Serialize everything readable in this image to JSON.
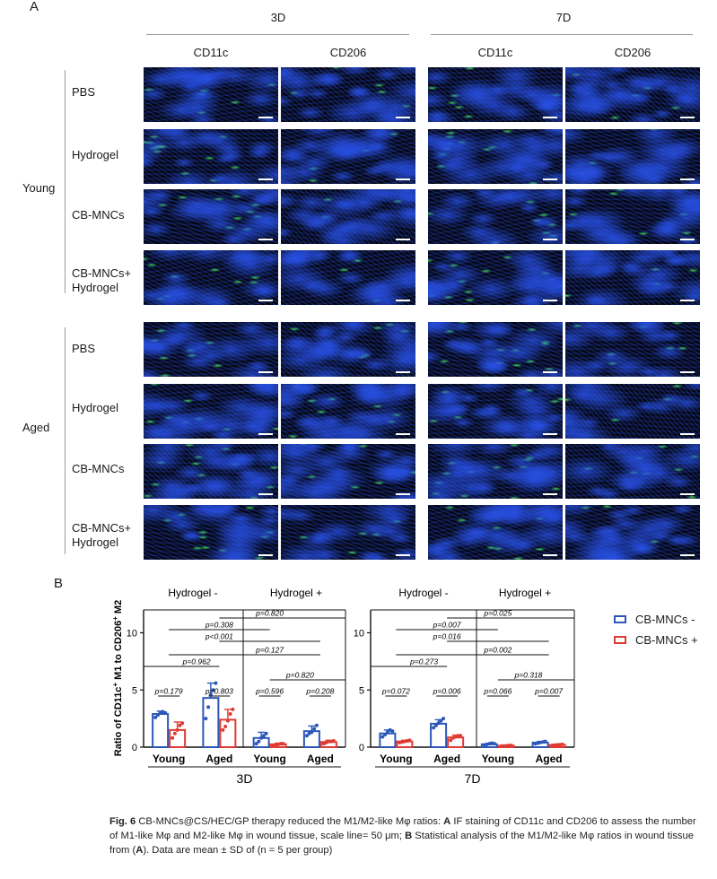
{
  "panel_a": {
    "letter": "A",
    "time_groups": [
      "3D",
      "7D"
    ],
    "markers": [
      "CD11c",
      "CD206",
      "CD11c",
      "CD206"
    ],
    "age_groups": [
      {
        "label": "Young",
        "rows": [
          "PBS",
          "Hydrogel",
          "CB-MNCs",
          "CB-MNCs+ Hydrogel"
        ]
      },
      {
        "label": "Aged",
        "rows": [
          "PBS",
          "Hydrogel",
          "CB-MNCs",
          "CB-MNCs+ Hydrogel"
        ]
      }
    ],
    "row_labels": {
      "pbs": "PBS",
      "hydrogel": "Hydrogel",
      "cbmncs": "CB-MNCs",
      "combo_line1": "CB-MNCs+",
      "combo_line2": "Hydrogel"
    },
    "young_label": "Young",
    "aged_label": "Aged",
    "colors": {
      "nuclei": "#1f4fd6",
      "stain": "#3ddc5a",
      "background": "#05060d"
    }
  },
  "panel_b": {
    "letter": "B",
    "legend": [
      {
        "label": "CB-MNCs -",
        "color": "#2c57b8"
      },
      {
        "label": "CB-MNCs +",
        "color": "#e03a32"
      }
    ]
  },
  "chart_data": [
    {
      "type": "bar",
      "title": "3D",
      "ylabel": "Ratio of CD11c+ M1 to CD206+ M2",
      "ylim": [
        0,
        12
      ],
      "yticks": [
        0,
        5,
        10
      ],
      "hydrogel_groups": [
        "Hydrogel -",
        "Hydrogel +"
      ],
      "categories": [
        "Young",
        "Aged",
        "Young",
        "Aged"
      ],
      "series": [
        {
          "name": "CB-MNCs -",
          "values": [
            2.9,
            4.3,
            0.8,
            1.4
          ],
          "errors": [
            0.25,
            1.3,
            0.5,
            0.45
          ],
          "points": [
            [
              2.6,
              2.8,
              3.0,
              3.1,
              3.0
            ],
            [
              2.5,
              3.5,
              4.6,
              5.0,
              5.6
            ],
            [
              0.3,
              0.5,
              0.8,
              1.0,
              1.2
            ],
            [
              1.0,
              1.2,
              1.3,
              1.6,
              1.9
            ]
          ]
        },
        {
          "name": "CB-MNCs +",
          "values": [
            1.5,
            2.4,
            0.25,
            0.45
          ],
          "errors": [
            0.7,
            0.9,
            0.1,
            0.15
          ],
          "points": [
            [
              0.8,
              1.2,
              1.5,
              1.9,
              2.1
            ],
            [
              1.5,
              1.8,
              2.3,
              2.9,
              3.3
            ],
            [
              0.15,
              0.2,
              0.25,
              0.3,
              0.3
            ],
            [
              0.3,
              0.4,
              0.5,
              0.5,
              0.55
            ]
          ]
        }
      ],
      "annotations": [
        "p=0.820",
        "p=0.308",
        "p<0.001",
        "p=0.127",
        "p=0.962",
        "p=0.820",
        "p=0.179",
        "p=0.803",
        "p=0.596",
        "p=0.208"
      ]
    },
    {
      "type": "bar",
      "title": "7D",
      "ylabel": "",
      "ylim": [
        0,
        12
      ],
      "yticks": [
        0,
        5,
        10
      ],
      "hydrogel_groups": [
        "Hydrogel -",
        "Hydrogel +"
      ],
      "categories": [
        "Young",
        "Aged",
        "Young",
        "Aged"
      ],
      "series": [
        {
          "name": "CB-MNCs -",
          "values": [
            1.2,
            2.05,
            0.25,
            0.4
          ],
          "errors": [
            0.3,
            0.35,
            0.08,
            0.1
          ],
          "points": [
            [
              0.9,
              1.1,
              1.3,
              1.5,
              1.4
            ],
            [
              1.7,
              1.9,
              2.1,
              2.3,
              2.5
            ],
            [
              0.2,
              0.25,
              0.3,
              0.35,
              0.3
            ],
            [
              0.3,
              0.35,
              0.4,
              0.45,
              0.5
            ]
          ]
        },
        {
          "name": "CB-MNCs +",
          "values": [
            0.5,
            0.85,
            0.12,
            0.2
          ],
          "errors": [
            0.1,
            0.2,
            0.05,
            0.05
          ],
          "points": [
            [
              0.4,
              0.45,
              0.5,
              0.55,
              0.6
            ],
            [
              0.6,
              0.8,
              0.9,
              1.0,
              1.0
            ],
            [
              0.1,
              0.1,
              0.12,
              0.15,
              0.15
            ],
            [
              0.15,
              0.18,
              0.2,
              0.22,
              0.25
            ]
          ]
        }
      ],
      "annotations": [
        "p=0.025",
        "p=0.007",
        "p=0.016",
        "p=0.002",
        "p=0.273",
        "p=0.318",
        "p=0.072",
        "p=0.006",
        "p=0.066",
        "p=0.007"
      ]
    }
  ],
  "caption": {
    "fig_label": "Fig. 6",
    "text1": " CB-MNCs@CS/HEC/GP therapy reduced the M1/M2-like Mφ ratios: ",
    "a_label": "A",
    "text2": " IF staining of CD11c and CD206 to assess the number of M1-like Mφ and M2-like Mφ in wound tissue, scale line= 50 μm; ",
    "b_label": "B",
    "text3": " Statistical analysis of the M1/M2-like Mφ ratios in wound tissue from (",
    "a_ref": "A",
    "text4": "). Data are mean ± SD of (n = 5 per group)"
  }
}
